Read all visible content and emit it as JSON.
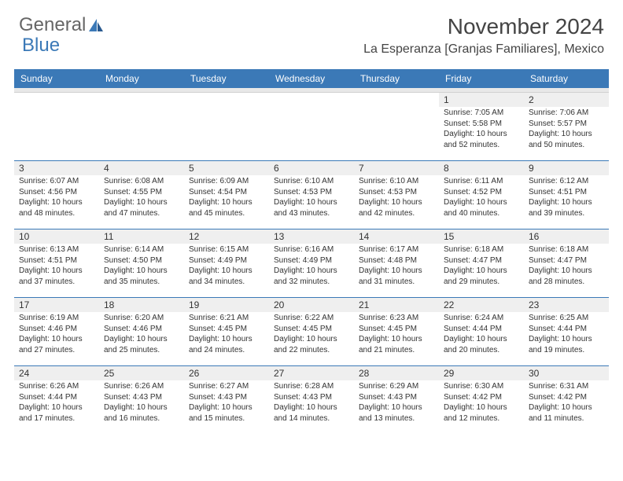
{
  "logo": {
    "part1": "General",
    "part2": "Blue"
  },
  "title": "November 2024",
  "location": "La Esperanza [Granjas Familiares], Mexico",
  "colors": {
    "header_bg": "#3b79b7",
    "header_text": "#ffffff",
    "shaded_bg": "#efefef",
    "border": "#3b79b7",
    "text": "#333333",
    "logo_gray": "#666666",
    "logo_blue": "#3b79b7"
  },
  "day_labels": [
    "Sunday",
    "Monday",
    "Tuesday",
    "Wednesday",
    "Thursday",
    "Friday",
    "Saturday"
  ],
  "weeks": [
    [
      null,
      null,
      null,
      null,
      null,
      {
        "n": "1",
        "sr": "7:05 AM",
        "ss": "5:58 PM",
        "dl": "10 hours and 52 minutes."
      },
      {
        "n": "2",
        "sr": "7:06 AM",
        "ss": "5:57 PM",
        "dl": "10 hours and 50 minutes."
      }
    ],
    [
      {
        "n": "3",
        "sr": "6:07 AM",
        "ss": "4:56 PM",
        "dl": "10 hours and 48 minutes."
      },
      {
        "n": "4",
        "sr": "6:08 AM",
        "ss": "4:55 PM",
        "dl": "10 hours and 47 minutes."
      },
      {
        "n": "5",
        "sr": "6:09 AM",
        "ss": "4:54 PM",
        "dl": "10 hours and 45 minutes."
      },
      {
        "n": "6",
        "sr": "6:10 AM",
        "ss": "4:53 PM",
        "dl": "10 hours and 43 minutes."
      },
      {
        "n": "7",
        "sr": "6:10 AM",
        "ss": "4:53 PM",
        "dl": "10 hours and 42 minutes."
      },
      {
        "n": "8",
        "sr": "6:11 AM",
        "ss": "4:52 PM",
        "dl": "10 hours and 40 minutes."
      },
      {
        "n": "9",
        "sr": "6:12 AM",
        "ss": "4:51 PM",
        "dl": "10 hours and 39 minutes."
      }
    ],
    [
      {
        "n": "10",
        "sr": "6:13 AM",
        "ss": "4:51 PM",
        "dl": "10 hours and 37 minutes."
      },
      {
        "n": "11",
        "sr": "6:14 AM",
        "ss": "4:50 PM",
        "dl": "10 hours and 35 minutes."
      },
      {
        "n": "12",
        "sr": "6:15 AM",
        "ss": "4:49 PM",
        "dl": "10 hours and 34 minutes."
      },
      {
        "n": "13",
        "sr": "6:16 AM",
        "ss": "4:49 PM",
        "dl": "10 hours and 32 minutes."
      },
      {
        "n": "14",
        "sr": "6:17 AM",
        "ss": "4:48 PM",
        "dl": "10 hours and 31 minutes."
      },
      {
        "n": "15",
        "sr": "6:18 AM",
        "ss": "4:47 PM",
        "dl": "10 hours and 29 minutes."
      },
      {
        "n": "16",
        "sr": "6:18 AM",
        "ss": "4:47 PM",
        "dl": "10 hours and 28 minutes."
      }
    ],
    [
      {
        "n": "17",
        "sr": "6:19 AM",
        "ss": "4:46 PM",
        "dl": "10 hours and 27 minutes."
      },
      {
        "n": "18",
        "sr": "6:20 AM",
        "ss": "4:46 PM",
        "dl": "10 hours and 25 minutes."
      },
      {
        "n": "19",
        "sr": "6:21 AM",
        "ss": "4:45 PM",
        "dl": "10 hours and 24 minutes."
      },
      {
        "n": "20",
        "sr": "6:22 AM",
        "ss": "4:45 PM",
        "dl": "10 hours and 22 minutes."
      },
      {
        "n": "21",
        "sr": "6:23 AM",
        "ss": "4:45 PM",
        "dl": "10 hours and 21 minutes."
      },
      {
        "n": "22",
        "sr": "6:24 AM",
        "ss": "4:44 PM",
        "dl": "10 hours and 20 minutes."
      },
      {
        "n": "23",
        "sr": "6:25 AM",
        "ss": "4:44 PM",
        "dl": "10 hours and 19 minutes."
      }
    ],
    [
      {
        "n": "24",
        "sr": "6:26 AM",
        "ss": "4:44 PM",
        "dl": "10 hours and 17 minutes."
      },
      {
        "n": "25",
        "sr": "6:26 AM",
        "ss": "4:43 PM",
        "dl": "10 hours and 16 minutes."
      },
      {
        "n": "26",
        "sr": "6:27 AM",
        "ss": "4:43 PM",
        "dl": "10 hours and 15 minutes."
      },
      {
        "n": "27",
        "sr": "6:28 AM",
        "ss": "4:43 PM",
        "dl": "10 hours and 14 minutes."
      },
      {
        "n": "28",
        "sr": "6:29 AM",
        "ss": "4:43 PM",
        "dl": "10 hours and 13 minutes."
      },
      {
        "n": "29",
        "sr": "6:30 AM",
        "ss": "4:42 PM",
        "dl": "10 hours and 12 minutes."
      },
      {
        "n": "30",
        "sr": "6:31 AM",
        "ss": "4:42 PM",
        "dl": "10 hours and 11 minutes."
      }
    ]
  ],
  "labels": {
    "sunrise": "Sunrise:",
    "sunset": "Sunset:",
    "daylight": "Daylight:"
  }
}
